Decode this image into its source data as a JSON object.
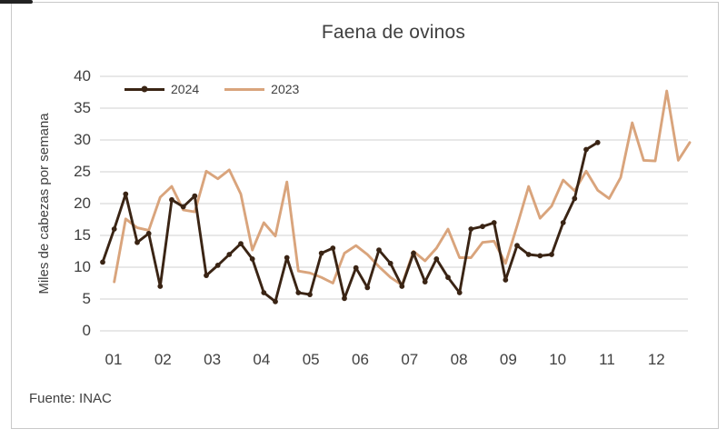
{
  "title": "Faena de ovinos",
  "source": "Fuente: INAC",
  "y_axis_title": "Miles de cabezas por semana",
  "legend": {
    "series_2024_label": "2024",
    "series_2023_label": "2023"
  },
  "colors": {
    "series_2024": "#3A2414",
    "series_2023": "#D9A47C",
    "gridline": "#D9D9D9",
    "text": "#404040"
  },
  "chart_data": {
    "type": "line",
    "title": "Faena de ovinos",
    "xlabel": "",
    "ylabel": "Miles de cabezas por semana",
    "x_unit": "week of year (weekly slaughter data)",
    "ylim": [
      0,
      40
    ],
    "ytick_step": 5,
    "yticks": [
      0,
      5,
      10,
      15,
      20,
      25,
      30,
      35,
      40
    ],
    "xticks_months": [
      "01",
      "02",
      "03",
      "04",
      "05",
      "06",
      "07",
      "08",
      "09",
      "10",
      "11",
      "12"
    ],
    "grid": "horizontal",
    "legend_position": "inside-top-left",
    "series": [
      {
        "name": "2023",
        "color": "#D9A47C",
        "markers": false,
        "start_week": 2,
        "values": [
          7.7,
          17.6,
          16.2,
          15.8,
          21,
          22.7,
          19,
          18.7,
          25.1,
          23.9,
          25.3,
          21.5,
          12.7,
          17,
          14.9,
          23.4,
          9.4,
          9.1,
          8.4,
          7.5,
          12.2,
          13.4,
          12,
          10.1,
          8.4,
          7.2,
          12.5,
          11,
          13,
          16,
          11.5,
          11.5,
          13.9,
          14.1,
          10.6,
          16.5,
          22.7,
          17.7,
          19.6,
          23.7,
          22,
          25.1,
          22.1,
          20.8,
          24.1,
          32.7,
          26.8,
          26.7,
          37.7,
          26.8,
          29.6
        ]
      },
      {
        "name": "2024",
        "color": "#3A2414",
        "markers": true,
        "start_week": 1,
        "values": [
          10.8,
          16,
          21.5,
          13.9,
          15.3,
          7,
          20.6,
          19.5,
          21.2,
          8.7,
          10.3,
          12,
          13.7,
          11.3,
          6,
          4.6,
          11.5,
          6,
          5.7,
          12.2,
          13,
          5.1,
          9.9,
          6.8,
          12.7,
          10.6,
          7,
          12.2,
          7.7,
          11.3,
          8.4,
          6,
          16,
          16.4,
          17,
          8,
          13.4,
          12,
          11.8,
          12,
          17,
          20.8,
          28.5,
          29.6
        ]
      }
    ]
  }
}
